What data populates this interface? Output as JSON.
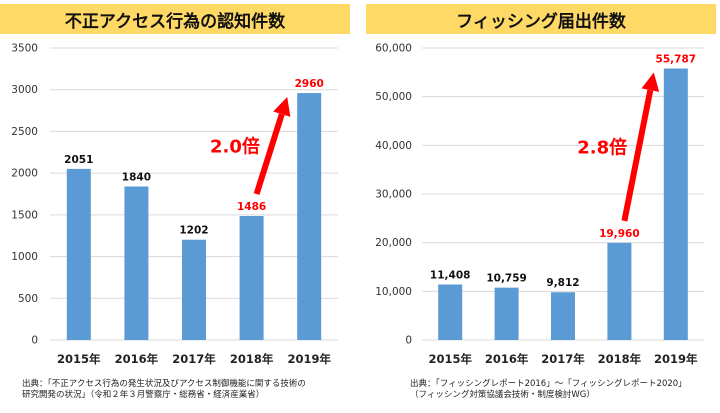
{
  "colors": {
    "bar": "#5b9bd5",
    "highlight": "#ff0000",
    "banner": "#ffd966",
    "grid": "#d9d9d9"
  },
  "chart_data": [
    {
      "type": "bar",
      "title": "不正アクセス行為の認知件数",
      "categories": [
        "2015年",
        "2016年",
        "2017年",
        "2018年",
        "2019年"
      ],
      "values": [
        2051,
        1840,
        1202,
        1486,
        2960
      ],
      "value_labels": [
        "2051",
        "1840",
        "1202",
        "1486",
        "2960"
      ],
      "highlight_indices": [
        3,
        4
      ],
      "ylim": [
        0,
        3500
      ],
      "yticks": [
        0,
        500,
        1000,
        1500,
        2000,
        2500,
        3000,
        3500
      ],
      "ytick_labels": [
        "0",
        "500",
        "1000",
        "1500",
        "2000",
        "2500",
        "3000",
        "3500"
      ],
      "grid": true,
      "annotation": "2.0倍",
      "source_lines": [
        "出典：「不正アクセス行為の発生状況及びアクセス制御機能に関する技術の",
        "研究開発の状況」（令和２年３月警察庁・総務省・経済産業省）"
      ]
    },
    {
      "type": "bar",
      "title": "フィッシング届出件数",
      "categories": [
        "2015年",
        "2016年",
        "2017年",
        "2018年",
        "2019年"
      ],
      "values": [
        11408,
        10759,
        9812,
        19960,
        55787
      ],
      "value_labels": [
        "11,408",
        "10,759",
        "9,812",
        "19,960",
        "55,787"
      ],
      "highlight_indices": [
        3,
        4
      ],
      "ylim": [
        0,
        60000
      ],
      "yticks": [
        0,
        10000,
        20000,
        30000,
        40000,
        50000,
        60000
      ],
      "ytick_labels": [
        "0",
        "10,000",
        "20,000",
        "30,000",
        "40,000",
        "50,000",
        "60,000"
      ],
      "grid": true,
      "annotation": "2.8倍",
      "source_lines": [
        "出典：「フィッシングレポート2016」～「フィッシングレポート2020」",
        "（フィッシング対策協議会技術・制度検討WG）"
      ]
    }
  ]
}
